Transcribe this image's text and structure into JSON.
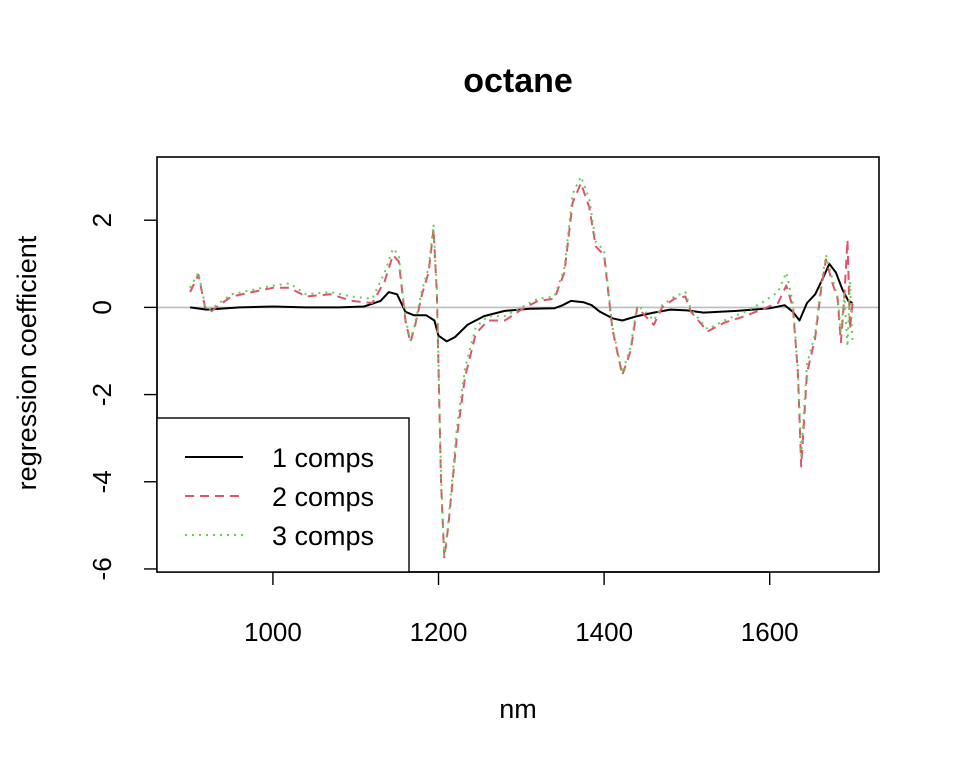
{
  "chart_data": {
    "type": "line",
    "title": "octane",
    "xlabel": "nm",
    "ylabel": "regression coefficient",
    "xlim": [
      860,
      1732
    ],
    "ylim": [
      -6.07,
      3.45
    ],
    "xticks": [
      1000,
      1200,
      1400,
      1600
    ],
    "yticks": [
      -6,
      -4,
      -2,
      0,
      2
    ],
    "reference_line": {
      "y": 0,
      "color": "#bebebe"
    },
    "legend": {
      "position": "bottom-left"
    },
    "series": [
      {
        "name": "1 comps",
        "color": "#000000",
        "dash": "solid",
        "points": [
          [
            900,
            0.0
          ],
          [
            920,
            -0.05
          ],
          [
            960,
            0.0
          ],
          [
            1000,
            0.02
          ],
          [
            1040,
            0.0
          ],
          [
            1080,
            0.0
          ],
          [
            1110,
            0.02
          ],
          [
            1130,
            0.15
          ],
          [
            1140,
            0.35
          ],
          [
            1150,
            0.3
          ],
          [
            1160,
            -0.1
          ],
          [
            1170,
            -0.18
          ],
          [
            1185,
            -0.18
          ],
          [
            1195,
            -0.3
          ],
          [
            1200,
            -0.65
          ],
          [
            1210,
            -0.78
          ],
          [
            1220,
            -0.68
          ],
          [
            1235,
            -0.4
          ],
          [
            1255,
            -0.2
          ],
          [
            1280,
            -0.08
          ],
          [
            1310,
            -0.03
          ],
          [
            1340,
            -0.02
          ],
          [
            1350,
            0.05
          ],
          [
            1360,
            0.15
          ],
          [
            1375,
            0.12
          ],
          [
            1385,
            0.05
          ],
          [
            1395,
            -0.1
          ],
          [
            1410,
            -0.25
          ],
          [
            1422,
            -0.3
          ],
          [
            1440,
            -0.2
          ],
          [
            1460,
            -0.12
          ],
          [
            1480,
            -0.05
          ],
          [
            1500,
            -0.07
          ],
          [
            1520,
            -0.12
          ],
          [
            1540,
            -0.1
          ],
          [
            1560,
            -0.08
          ],
          [
            1580,
            -0.05
          ],
          [
            1600,
            -0.02
          ],
          [
            1618,
            0.05
          ],
          [
            1628,
            -0.1
          ],
          [
            1636,
            -0.3
          ],
          [
            1645,
            0.1
          ],
          [
            1655,
            0.3
          ],
          [
            1665,
            0.7
          ],
          [
            1672,
            1.0
          ],
          [
            1680,
            0.8
          ],
          [
            1688,
            0.4
          ],
          [
            1695,
            0.15
          ],
          [
            1700,
            0.1
          ]
        ]
      },
      {
        "name": "2 comps",
        "color": "#df536b",
        "dash": "dashed",
        "points": [
          [
            900,
            0.35
          ],
          [
            910,
            0.75
          ],
          [
            918,
            0.0
          ],
          [
            925,
            -0.1
          ],
          [
            935,
            0.05
          ],
          [
            950,
            0.25
          ],
          [
            975,
            0.35
          ],
          [
            1000,
            0.45
          ],
          [
            1020,
            0.45
          ],
          [
            1040,
            0.25
          ],
          [
            1070,
            0.3
          ],
          [
            1095,
            0.15
          ],
          [
            1120,
            0.1
          ],
          [
            1135,
            0.6
          ],
          [
            1145,
            1.2
          ],
          [
            1152,
            1.05
          ],
          [
            1160,
            -0.3
          ],
          [
            1166,
            -0.8
          ],
          [
            1172,
            -0.4
          ],
          [
            1180,
            0.3
          ],
          [
            1188,
            0.8
          ],
          [
            1194,
            1.8
          ],
          [
            1198,
            0.3
          ],
          [
            1203,
            -4.0
          ],
          [
            1207,
            -5.75
          ],
          [
            1212,
            -5.0
          ],
          [
            1222,
            -3.0
          ],
          [
            1232,
            -1.6
          ],
          [
            1245,
            -0.6
          ],
          [
            1260,
            -0.3
          ],
          [
            1280,
            -0.3
          ],
          [
            1300,
            -0.05
          ],
          [
            1320,
            0.15
          ],
          [
            1340,
            0.2
          ],
          [
            1352,
            0.8
          ],
          [
            1362,
            2.4
          ],
          [
            1372,
            2.85
          ],
          [
            1382,
            2.3
          ],
          [
            1390,
            1.4
          ],
          [
            1400,
            1.2
          ],
          [
            1410,
            -0.5
          ],
          [
            1422,
            -1.55
          ],
          [
            1432,
            -1.0
          ],
          [
            1440,
            0.0
          ],
          [
            1450,
            -0.2
          ],
          [
            1460,
            -0.4
          ],
          [
            1470,
            0.0
          ],
          [
            1485,
            0.2
          ],
          [
            1498,
            0.25
          ],
          [
            1505,
            -0.1
          ],
          [
            1525,
            -0.55
          ],
          [
            1545,
            -0.35
          ],
          [
            1570,
            -0.2
          ],
          [
            1590,
            -0.05
          ],
          [
            1610,
            0.1
          ],
          [
            1620,
            0.5
          ],
          [
            1628,
            0.0
          ],
          [
            1634,
            -1.5
          ],
          [
            1638,
            -3.65
          ],
          [
            1645,
            -1.5
          ],
          [
            1655,
            -0.7
          ],
          [
            1662,
            0.4
          ],
          [
            1668,
            1.1
          ],
          [
            1675,
            0.6
          ],
          [
            1682,
            0.2
          ],
          [
            1686,
            -0.8
          ],
          [
            1690,
            0.2
          ],
          [
            1694,
            1.55
          ],
          [
            1697,
            -0.5
          ],
          [
            1700,
            0.1
          ]
        ]
      },
      {
        "name": "3 comps",
        "color": "#61d04f",
        "dash": "dotted",
        "points": [
          [
            900,
            0.45
          ],
          [
            910,
            0.8
          ],
          [
            918,
            0.05
          ],
          [
            925,
            -0.05
          ],
          [
            935,
            0.1
          ],
          [
            950,
            0.3
          ],
          [
            975,
            0.4
          ],
          [
            1000,
            0.5
          ],
          [
            1020,
            0.55
          ],
          [
            1040,
            0.3
          ],
          [
            1070,
            0.35
          ],
          [
            1095,
            0.25
          ],
          [
            1120,
            0.2
          ],
          [
            1135,
            0.8
          ],
          [
            1145,
            1.35
          ],
          [
            1152,
            1.2
          ],
          [
            1160,
            -0.25
          ],
          [
            1166,
            -0.75
          ],
          [
            1172,
            -0.35
          ],
          [
            1180,
            0.4
          ],
          [
            1188,
            0.9
          ],
          [
            1194,
            1.9
          ],
          [
            1198,
            0.4
          ],
          [
            1203,
            -3.8
          ],
          [
            1207,
            -5.7
          ],
          [
            1212,
            -4.9
          ],
          [
            1222,
            -2.8
          ],
          [
            1232,
            -1.4
          ],
          [
            1245,
            -0.45
          ],
          [
            1260,
            -0.2
          ],
          [
            1280,
            -0.2
          ],
          [
            1300,
            0.0
          ],
          [
            1320,
            0.2
          ],
          [
            1340,
            0.25
          ],
          [
            1352,
            0.9
          ],
          [
            1362,
            2.6
          ],
          [
            1372,
            3.0
          ],
          [
            1382,
            2.5
          ],
          [
            1390,
            1.5
          ],
          [
            1400,
            1.3
          ],
          [
            1410,
            -0.45
          ],
          [
            1422,
            -1.5
          ],
          [
            1432,
            -0.9
          ],
          [
            1440,
            0.05
          ],
          [
            1450,
            -0.1
          ],
          [
            1460,
            -0.3
          ],
          [
            1470,
            0.05
          ],
          [
            1485,
            0.25
          ],
          [
            1498,
            0.35
          ],
          [
            1505,
            -0.05
          ],
          [
            1525,
            -0.5
          ],
          [
            1545,
            -0.3
          ],
          [
            1570,
            -0.1
          ],
          [
            1590,
            0.1
          ],
          [
            1610,
            0.35
          ],
          [
            1620,
            0.8
          ],
          [
            1628,
            0.1
          ],
          [
            1634,
            -1.4
          ],
          [
            1638,
            -3.4
          ],
          [
            1645,
            -1.3
          ],
          [
            1655,
            -0.6
          ],
          [
            1662,
            0.5
          ],
          [
            1668,
            1.2
          ],
          [
            1675,
            0.7
          ],
          [
            1682,
            0.25
          ],
          [
            1686,
            -0.6
          ],
          [
            1690,
            0.3
          ],
          [
            1694,
            -0.9
          ],
          [
            1697,
            0.6
          ],
          [
            1700,
            -0.8
          ]
        ]
      }
    ]
  }
}
